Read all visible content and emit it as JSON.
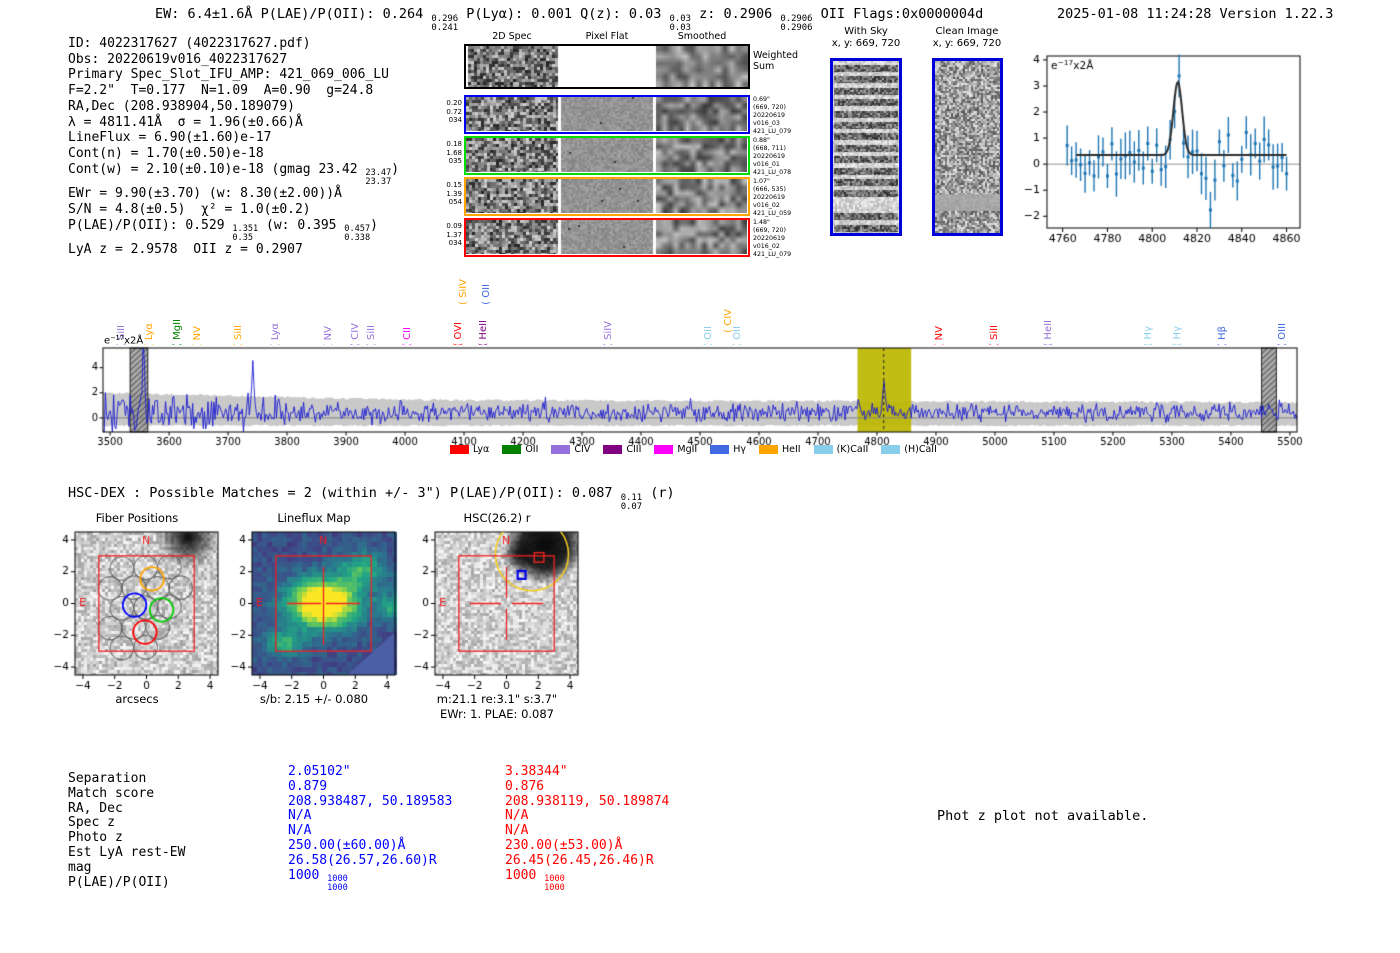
{
  "header": {
    "tokens": [
      "EW: 6.4±1.6Å  P(LAE)/P(OII): 0.264 ",
      {
        "sup": "0.296",
        "sub": "0.241"
      },
      "  P(Lyα): 0.001  Q(z): 0.03 ",
      {
        "sup": "0.03",
        "sub": "0.03"
      },
      "  z: 0.2906 ",
      {
        "sup": "0.2906",
        "sub": "0.2906"
      },
      " OII  Flags:0x0000004d"
    ],
    "right": "2025-01-08 11:24:28  Version 1.22.3"
  },
  "info": {
    "lines": [
      [
        "ID: 4022317627 (4022317627.pdf)"
      ],
      [
        "Obs: 20220619v016_4022317627"
      ],
      [
        "Primary Spec_Slot_IFU_AMP: 421_069_006_LU"
      ],
      [
        "F=2.2\"  T=0.177  N=1.09  A=0.90  g=24.8"
      ],
      [
        "RA,Dec (208.938904,50.189079)"
      ],
      [
        "λ = 4811.41Å  σ = 1.96(±0.66)Å"
      ],
      [
        "LineFlux = 6.90(±1.60)e-17"
      ],
      [
        "Cont(n) = 1.70(±0.50)e-18"
      ],
      [
        "Cont(w) = 2.10(±0.10)e-18 (gmag 23.42 ",
        {
          "sup": "23.47",
          "sub": "23.37"
        },
        ")"
      ],
      [
        "EWr = 9.90(±3.70) (w: 8.30(±2.00))Å"
      ],
      [
        "S/N = 4.8(±0.5)  χ² = 1.0(±0.2)"
      ],
      [
        "P(LAE)/P(OII): 0.529 ",
        {
          "sup": "1.351",
          "sub": "0.35"
        },
        " (w: 0.395 ",
        {
          "sup": "0.457",
          "sub": "0.338"
        },
        ")"
      ],
      [
        "LyA z = 2.9578  OII z = 0.2907"
      ]
    ]
  },
  "spec2d": {
    "col_titles": [
      "2D Spec",
      "Pixel Flat",
      "Smoothed"
    ],
    "weighted_label": "Weighted\nSum",
    "rows": [
      {
        "color": "#0000ee",
        "left": [
          "0.20",
          "0.72",
          "034"
        ],
        "right": [
          "0.69\"",
          "(669, 720)",
          "20220619",
          "v016_03",
          "421_LU_079"
        ]
      },
      {
        "color": "#00dd00",
        "left": [
          "0.18",
          "1.68",
          "035"
        ],
        "right": [
          "0.88\"",
          "(668, 711)",
          "20220619",
          "v016_01",
          "421_LU_078"
        ]
      },
      {
        "color": "#ffa500",
        "left": [
          "0.15",
          "1.39",
          "054"
        ],
        "right": [
          "1.07\"",
          "(666, 535)",
          "20220619",
          "v016_02",
          "421_LU_059"
        ]
      },
      {
        "color": "#ff0000",
        "left": [
          "0.09",
          "1.37",
          "034"
        ],
        "right": [
          "1.48\"",
          "(669, 720)",
          "20220619",
          "v016_02",
          "421_LU_079"
        ]
      }
    ]
  },
  "cutouts2d": {
    "withsky": {
      "title": "With Sky",
      "subtitle": "x, y: 669, 720"
    },
    "clean": {
      "title": "Clean Image",
      "subtitle": "x, y: 669, 720"
    }
  },
  "hscdex": {
    "tokens": [
      "HSC-DEX : Possible Matches = 2 (within +/- 3\")  P(LAE)/P(OII): 0.087 ",
      {
        "sup": "0.11",
        "sub": "0.07"
      },
      " (r)"
    ]
  },
  "matches": {
    "row_labels": [
      "Separation",
      "Match score",
      "RA, Dec",
      "Spec z",
      "Photo z",
      "Est LyA rest-EW",
      "mag",
      "P(LAE)/P(OII)"
    ],
    "match1": {
      "color": "#0000ff",
      "values": [
        "2.05102\"",
        "0.879",
        "208.938487, 50.189583",
        "N/A",
        "N/A",
        "250.00(±60.00)Å",
        "26.58(26.57,26.60)R",
        [
          "1000 ",
          {
            "sup": "1000",
            "sub": "1000"
          }
        ]
      ]
    },
    "match2": {
      "color": "#ff0000",
      "values": [
        "3.38344\"",
        "0.876",
        "208.938119, 50.189874",
        "N/A",
        "N/A",
        "230.00(±53.00)Å",
        "26.45(26.45,26.46)R",
        [
          "1000 ",
          {
            "sup": "1000",
            "sub": "1000"
          }
        ]
      ]
    },
    "note": "Phot z plot not available."
  },
  "chart_data": [
    {
      "id": "line-fit-inset",
      "type": "scatter",
      "unit_tokens": [
        "e",
        {
          "sup": "−17"
        },
        "x2Å"
      ],
      "xlim": [
        4753,
        4866
      ],
      "ylim": [
        -2.45,
        4.15
      ],
      "xticks": [
        4760,
        4780,
        4800,
        4820,
        4840,
        4860
      ],
      "yticks": [
        -2,
        -1,
        0,
        1,
        2,
        3,
        4
      ],
      "fit": {
        "center": 4811.41,
        "sigma": 1.96,
        "peak": 3.15,
        "baseline": 0.35
      },
      "point_color": "#1f77b4",
      "fit_color": "#2e2e2e",
      "point_step": 2
    },
    {
      "id": "full-spectrum",
      "type": "line",
      "unit_tokens": [
        "e",
        {
          "sup": "−17"
        },
        "x2Å"
      ],
      "xlim": [
        3488,
        5512
      ],
      "ylim": [
        -1.12,
        5.57
      ],
      "xticks": [
        3500,
        3600,
        3700,
        3800,
        3900,
        4000,
        4100,
        4200,
        4300,
        4400,
        4500,
        4600,
        4700,
        4800,
        4900,
        5000,
        5100,
        5200,
        5300,
        5400,
        5500
      ],
      "yticks": [
        0,
        2,
        4
      ],
      "line_color": "#1b1bd1",
      "noise_band_color": "rgba(165,165,165,0.6)",
      "highlight_band": {
        "from": 4767,
        "to": 4858,
        "color": "rgba(189,183,0,0.92)"
      },
      "dashed_line_at": 4811.41,
      "masked_bands": [
        [
          3534,
          3564
        ],
        [
          5452,
          5477
        ]
      ],
      "emission_peak": {
        "wl": 4811.41,
        "height": 2.4
      },
      "line_labels": [
        {
          "name": "SiII",
          "wl": 3524,
          "color": "#9370db",
          "raised": 0
        },
        {
          "name": "Lyα",
          "wl": 3571,
          "color": "#ffa500",
          "raised": 0
        },
        {
          "name": "MgII",
          "wl": 3618,
          "color": "#008000",
          "raised": 0
        },
        {
          "name": "NV",
          "wl": 3652,
          "color": "#ffa500",
          "raised": 0
        },
        {
          "name": "SiII",
          "wl": 3722,
          "color": "#ffa500",
          "raised": 0
        },
        {
          "name": "Lyα",
          "wl": 3785,
          "color": "#9370db",
          "raised": 0
        },
        {
          "name": "NV",
          "wl": 3874,
          "color": "#9370db",
          "raised": 0
        },
        {
          "name": "CIV",
          "wl": 3921,
          "color": "#9370db",
          "raised": 0
        },
        {
          "name": "SiII",
          "wl": 3948,
          "color": "#9370db",
          "raised": 0
        },
        {
          "name": "CII",
          "wl": 4009,
          "color": "#ff00ff",
          "raised": 0
        },
        {
          "name": "OVI",
          "wl": 4095,
          "color": "#ff0000",
          "raised": 0
        },
        {
          "name": "SiIV",
          "wl": 4104,
          "color": "#ffa500",
          "raised": 2
        },
        {
          "name": "HeII",
          "wl": 4137,
          "color": "#800080",
          "raised": 0
        },
        {
          "name": "OII",
          "wl": 4142,
          "color": "#4169e1",
          "raised": 2
        },
        {
          "name": "SiIV",
          "wl": 4349,
          "color": "#9370db",
          "raised": 0
        },
        {
          "name": "OII",
          "wl": 4519,
          "color": "#87ceeb",
          "raised": 0
        },
        {
          "name": "CIV",
          "wl": 4553,
          "color": "#ffa500",
          "raised": 1
        },
        {
          "name": "OII",
          "wl": 4568,
          "color": "#87ceeb",
          "raised": 0
        },
        {
          "name": "NV",
          "wl": 4910,
          "color": "#ff0000",
          "raised": 0
        },
        {
          "name": "SiII",
          "wl": 5003,
          "color": "#ff0000",
          "raised": 0
        },
        {
          "name": "HeII",
          "wl": 5095,
          "color": "#9370db",
          "raised": 0
        },
        {
          "name": "Hγ",
          "wl": 5264,
          "color": "#87ceeb",
          "raised": 0
        },
        {
          "name": "Hγ",
          "wl": 5314,
          "color": "#87ceeb",
          "raised": 0
        },
        {
          "name": "Hβ",
          "wl": 5390,
          "color": "#4169e1",
          "raised": 0
        },
        {
          "name": "OIII",
          "wl": 5491,
          "color": "#4169e1",
          "raised": 0
        }
      ],
      "legend": [
        {
          "label": "Lyα",
          "color": "#ff0000"
        },
        {
          "label": "OII",
          "color": "#008000"
        },
        {
          "label": "CIV",
          "color": "#9370db"
        },
        {
          "label": "CIII",
          "color": "#800080"
        },
        {
          "label": "MgII",
          "color": "#ff00ff"
        },
        {
          "label": "Hγ",
          "color": "#4169e1"
        },
        {
          "label": "HeII",
          "color": "#ffa500"
        },
        {
          "label": "(K)CaII",
          "color": "#87ceeb"
        },
        {
          "label": "(H)CaII",
          "color": "#87ceeb"
        }
      ]
    },
    {
      "id": "fiber-positions",
      "type": "image",
      "title": "Fiber Positions",
      "xlabel": "arcsecs",
      "xticks": [
        -4,
        -2,
        0,
        2,
        4
      ],
      "yticks": [
        -4,
        -2,
        0,
        2,
        4
      ],
      "compass_n": "N",
      "compass_e": "E",
      "aperture_box_arcsec": 3,
      "fiber_radius_arcsec": 0.74,
      "gray_fibers": [
        [
          -1.55,
          2.2
        ],
        [
          -0.05,
          2.25
        ],
        [
          1.45,
          2.3
        ],
        [
          -2.3,
          0.95
        ],
        [
          -0.8,
          1.0
        ],
        [
          0.7,
          0.95
        ],
        [
          2.15,
          1.0
        ],
        [
          -1.55,
          -0.3
        ],
        [
          -0.05,
          -0.25
        ],
        [
          1.45,
          -0.2
        ],
        [
          -2.3,
          -1.55
        ],
        [
          -0.8,
          -1.5
        ],
        [
          0.7,
          -1.5
        ],
        [
          -1.55,
          -2.8
        ],
        [
          -0.05,
          -2.75
        ]
      ],
      "highlight_fibers": [
        {
          "x": 0.35,
          "y": 1.55,
          "color": "#ffa500"
        },
        {
          "x": -0.75,
          "y": -0.1,
          "color": "#0000ff"
        },
        {
          "x": 0.95,
          "y": -0.4,
          "color": "#00cc00"
        },
        {
          "x": -0.1,
          "y": -1.8,
          "color": "#ff0000"
        }
      ]
    },
    {
      "id": "lineflux-map",
      "type": "heatmap",
      "title": "Lineflux Map",
      "xlabel": "s/b: 2.15 +/- 0.080",
      "xticks": [
        -4,
        -2,
        0,
        2,
        4
      ],
      "yticks": [
        -4,
        -2,
        0,
        2,
        4
      ],
      "compass_n": "N",
      "compass_e": "E",
      "aperture_box_arcsec": 3,
      "peak_at": [
        0,
        0
      ]
    },
    {
      "id": "hsc-r-cutout",
      "type": "image",
      "title": "HSC(26.2) r",
      "xlabel": "m:21.1  re:3.1\"  s:3.7\"",
      "xlabel2": "EWr: 1. PLAE: 0.087",
      "xticks": [
        -4,
        -2,
        0,
        2,
        4
      ],
      "yticks": [
        -4,
        -2,
        0,
        2,
        4
      ],
      "compass_n": "N",
      "compass_e": "E",
      "aperture_box_arcsec": 3,
      "yellow_circle": {
        "x": 1.6,
        "y": 3.1,
        "r": 2.3
      },
      "red_square": {
        "x": 2.05,
        "y": 2.9,
        "s": 0.6
      },
      "blue_square": {
        "x": 0.95,
        "y": 1.8,
        "s": 0.5
      }
    }
  ]
}
